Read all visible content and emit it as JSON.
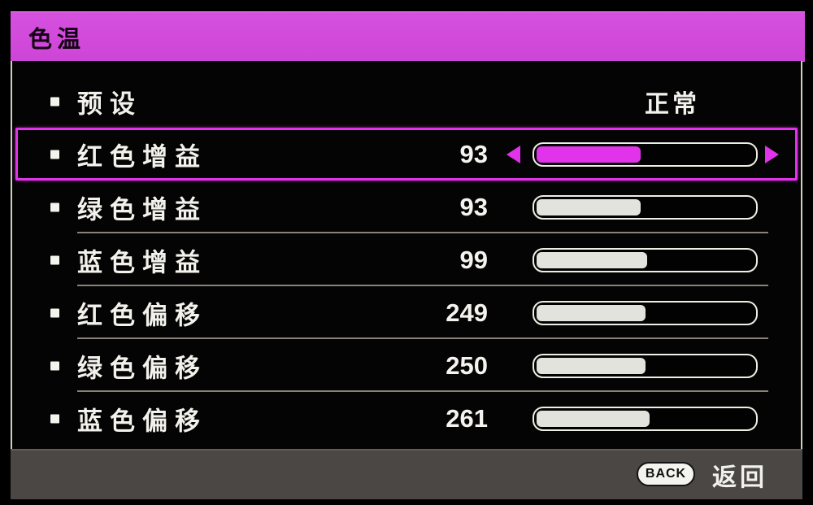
{
  "menu": {
    "title": "色温",
    "rows": [
      {
        "label": "预设",
        "value": "正常",
        "type": "choice",
        "selected": false
      },
      {
        "label": "红色增益",
        "value": "93",
        "type": "slider",
        "selected": true,
        "percent": 48
      },
      {
        "label": "绿色增益",
        "value": "93",
        "type": "slider",
        "selected": false,
        "percent": 48
      },
      {
        "label": "蓝色增益",
        "value": "99",
        "type": "slider",
        "selected": false,
        "percent": 51
      },
      {
        "label": "红色偏移",
        "value": "249",
        "type": "slider",
        "selected": false,
        "percent": 50
      },
      {
        "label": "绿色偏移",
        "value": "250",
        "type": "slider",
        "selected": false,
        "percent": 50
      },
      {
        "label": "蓝色偏移",
        "value": "261",
        "type": "slider",
        "selected": false,
        "percent": 52
      }
    ],
    "footer": {
      "back_button": "BACK",
      "back_label": "返回"
    },
    "colors": {
      "title_background": "#d04ad9",
      "highlight": "#e133e9",
      "unselected_fill": "#e3e3dd",
      "separator": "#8a8478",
      "footer_background": "#4a4745",
      "text": "#f2f1ec"
    }
  }
}
